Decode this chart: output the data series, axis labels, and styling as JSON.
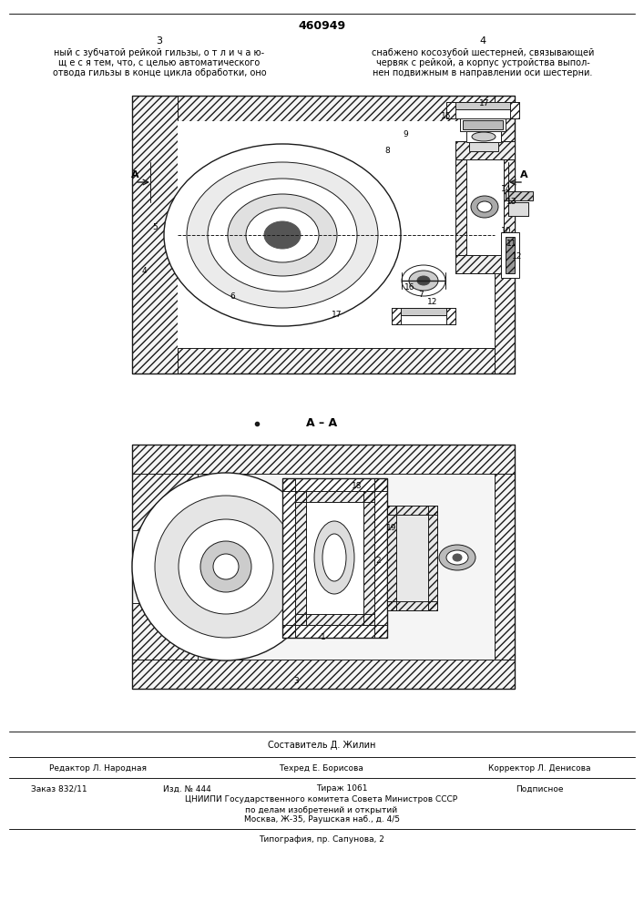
{
  "patent_number": "460949",
  "page_numbers": [
    "3",
    "4"
  ],
  "text_left": "ный с зубчатой рейкой гильзы, о т л и ч а ю-\nщ е с я тем, что, с целью автоматического\nотвода гильзы в конце цикла обработки, оно",
  "text_right": "снабжено косозубой шестерней, связывающей\nчервяк с рейкой, а корпус устройства выпол-\nнен подвижным в направлении оси шестерни.",
  "section_label": "А – А",
  "footer_compiler": "Составитель Д. Жилин",
  "footer_editor": "Редактор Л. Народная",
  "footer_tech": "Техред Е. Борисова",
  "footer_corrector": "Корректор Л. Денисова",
  "footer_order": "Заказ 832/11",
  "footer_pub": "Изд. № 444",
  "footer_circ": "Тираж 1061",
  "footer_sub": "Подписное",
  "footer_org": "ЦНИИПИ Государственного комитета Совета Министров СССР",
  "footer_org2": "по делам изобретений и открытий",
  "footer_addr": "Москва, Ж-35, Раушская наб., д. 4/5",
  "footer_print": "Типография, пр. Сапунова, 2",
  "bg_color": "#ffffff",
  "line_color": "#1a1a1a",
  "fig_width": 7.07,
  "fig_height": 10.0
}
